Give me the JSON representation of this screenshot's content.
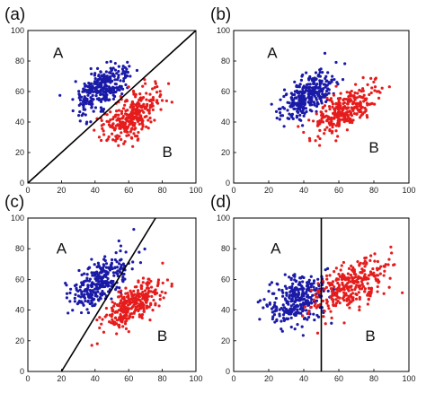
{
  "chart_data": [
    {
      "type": "scatter",
      "panel_label": "(a)",
      "xlim": [
        0,
        100
      ],
      "ylim": [
        0,
        100
      ],
      "x_ticks": [
        "0",
        "20",
        "40",
        "60",
        "80",
        "100"
      ],
      "y_ticks": [
        "0",
        "20",
        "40",
        "60",
        "80",
        "100"
      ],
      "grid": false,
      "series": [
        {
          "name": "A",
          "color": "#1a1aa8",
          "count": 300,
          "center": [
            44,
            62
          ],
          "slope": 1.0,
          "spread_along": 9,
          "spread_across": 5
        },
        {
          "name": "B",
          "color": "#e61c1c",
          "count": 300,
          "center": [
            62,
            44
          ],
          "slope": 1.0,
          "spread_along": 10,
          "spread_across": 5
        }
      ],
      "boundary": {
        "kind": "line",
        "x": [
          0,
          100
        ],
        "y": [
          0,
          100
        ]
      },
      "annotations": [
        {
          "text": "A",
          "x": 18,
          "y": 82
        },
        {
          "text": "B",
          "x": 83,
          "y": 17
        }
      ]
    },
    {
      "type": "scatter",
      "panel_label": "(b)",
      "xlim": [
        0,
        100
      ],
      "ylim": [
        0,
        100
      ],
      "x_ticks": [
        "0",
        "20",
        "40",
        "60",
        "80",
        "100"
      ],
      "y_ticks": [
        "0",
        "20",
        "40",
        "60",
        "80",
        "100"
      ],
      "grid": false,
      "series": [
        {
          "name": "A",
          "color": "#1a1aa8",
          "count": 300,
          "center": [
            43,
            58
          ],
          "slope": 1.15,
          "spread_along": 10,
          "spread_across": 5
        },
        {
          "name": "B",
          "color": "#e61c1c",
          "count": 300,
          "center": [
            63,
            47
          ],
          "slope": 0.9,
          "spread_along": 11,
          "spread_across": 5
        }
      ],
      "boundary": null,
      "annotations": [
        {
          "text": "A",
          "x": 22,
          "y": 82
        },
        {
          "text": "B",
          "x": 80,
          "y": 20
        }
      ]
    },
    {
      "type": "scatter",
      "panel_label": "(c)",
      "xlim": [
        0,
        100
      ],
      "ylim": [
        0,
        100
      ],
      "x_ticks": [
        "0",
        "20",
        "40",
        "60",
        "80",
        "100"
      ],
      "y_ticks": [
        "0",
        "20",
        "40",
        "60",
        "80",
        "100"
      ],
      "grid": false,
      "series": [
        {
          "name": "A",
          "color": "#1a1aa8",
          "count": 300,
          "center": [
            42,
            58
          ],
          "slope": 1.1,
          "spread_along": 11,
          "spread_across": 5
        },
        {
          "name": "B",
          "color": "#e61c1c",
          "count": 300,
          "center": [
            62,
            44
          ],
          "slope": 0.9,
          "spread_along": 11,
          "spread_across": 5
        }
      ],
      "boundary": {
        "kind": "line",
        "x": [
          20,
          76
        ],
        "y": [
          0,
          100
        ]
      },
      "annotations": [
        {
          "text": "A",
          "x": 20,
          "y": 77
        },
        {
          "text": "B",
          "x": 80,
          "y": 20
        }
      ]
    },
    {
      "type": "scatter",
      "panel_label": "(d)",
      "xlim": [
        0,
        100
      ],
      "ylim": [
        0,
        100
      ],
      "x_ticks": [
        "0",
        "20",
        "40",
        "60",
        "80",
        "100"
      ],
      "y_ticks": [
        "0",
        "20",
        "40",
        "60",
        "80",
        "100"
      ],
      "grid": false,
      "series": [
        {
          "name": "A",
          "color": "#1a1aa8",
          "count": 300,
          "center": [
            36,
            47
          ],
          "slope": 1.0,
          "spread_along": 10,
          "spread_across": 7
        },
        {
          "name": "B",
          "color": "#e61c1c",
          "count": 300,
          "center": [
            67,
            55
          ],
          "slope": 0.8,
          "spread_along": 12,
          "spread_across": 7
        }
      ],
      "boundary": {
        "kind": "vertical",
        "x": 50
      },
      "annotations": [
        {
          "text": "A",
          "x": 24,
          "y": 77
        },
        {
          "text": "B",
          "x": 78,
          "y": 20
        }
      ]
    }
  ]
}
